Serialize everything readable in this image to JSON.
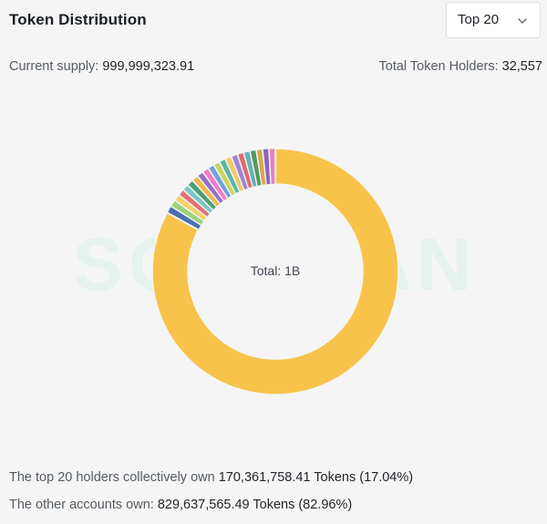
{
  "header": {
    "title": "Token Distribution",
    "select": {
      "value": "Top 20",
      "icon": "chevron-down-icon"
    }
  },
  "stats": {
    "supply_label": "Current supply:",
    "supply_value": "999,999,323.91",
    "holders_label": "Total Token Holders:",
    "holders_value": "32,557"
  },
  "watermark": "SOLSCAN",
  "chart": {
    "center_label": "Total: 1B"
  },
  "summary": {
    "top_prefix": "The top 20 holders collectively own",
    "top_value": "170,361,758.41 Tokens (17.04%)",
    "other_prefix": "The other accounts own:",
    "other_value": "829,637,565.49 Tokens (82.96%)"
  },
  "chart_data": {
    "type": "pie",
    "donut": true,
    "slices": [
      {
        "label": "Other accounts",
        "value": 82.96,
        "color": "#f7c34a"
      },
      {
        "label": "",
        "value": 0.95,
        "color": "#4b6fae"
      },
      {
        "label": "",
        "value": 0.9,
        "color": "#9fd07a"
      },
      {
        "label": "",
        "value": 0.88,
        "color": "#f2d36b"
      },
      {
        "label": "",
        "value": 0.86,
        "color": "#e37474"
      },
      {
        "label": "",
        "value": 0.86,
        "color": "#78c7c7"
      },
      {
        "label": "",
        "value": 0.86,
        "color": "#4c9f77"
      },
      {
        "label": "",
        "value": 0.85,
        "color": "#f1b64e"
      },
      {
        "label": "",
        "value": 0.85,
        "color": "#9370c7"
      },
      {
        "label": "",
        "value": 0.85,
        "color": "#f07cc9"
      },
      {
        "label": "",
        "value": 0.84,
        "color": "#6ea4d8"
      },
      {
        "label": "",
        "value": 0.84,
        "color": "#c9d45d"
      },
      {
        "label": "",
        "value": 0.84,
        "color": "#5bb7a6"
      },
      {
        "label": "",
        "value": 0.84,
        "color": "#f3c86a"
      },
      {
        "label": "",
        "value": 0.84,
        "color": "#9d84d3"
      },
      {
        "label": "",
        "value": 0.83,
        "color": "#de6c6c"
      },
      {
        "label": "",
        "value": 0.83,
        "color": "#66b0b7"
      },
      {
        "label": "",
        "value": 0.83,
        "color": "#4f9b61"
      },
      {
        "label": "",
        "value": 0.83,
        "color": "#d7a74b"
      },
      {
        "label": "",
        "value": 0.83,
        "color": "#8e63bf"
      },
      {
        "label": "",
        "value": 0.83,
        "color": "#e684be"
      }
    ]
  }
}
